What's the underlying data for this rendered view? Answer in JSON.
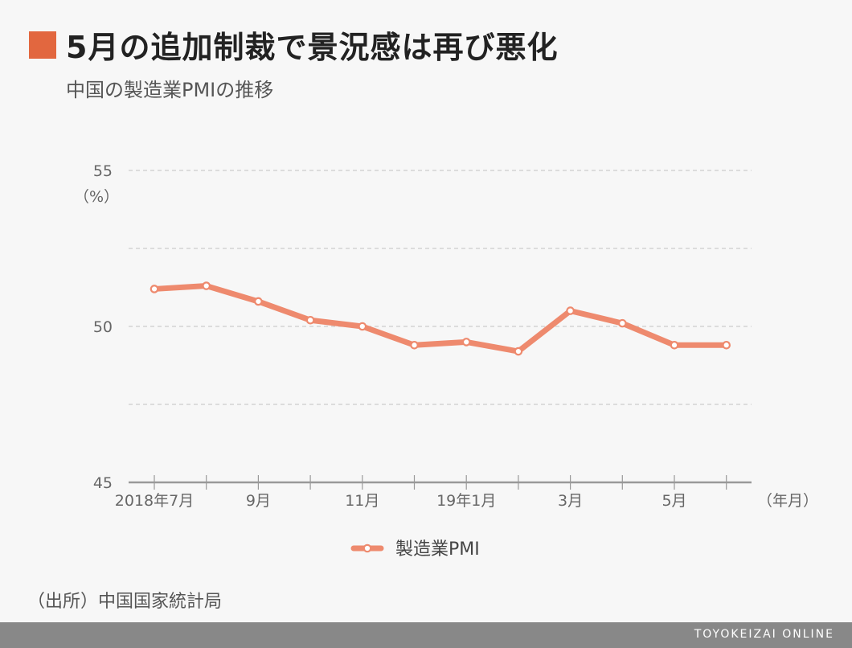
{
  "title": "5月の追加制裁で景況感は再び悪化",
  "subtitle": "中国の製造業PMIの推移",
  "source": "（出所）中国国家統計局",
  "footer": "TOYOKEIZAI ONLINE",
  "colors": {
    "accent": "#e2673f",
    "line": "#ee8a6e",
    "grid": "#cccccc",
    "axis": "#999999",
    "text": "#666666"
  },
  "chart_data": {
    "type": "line",
    "x": [
      "2018年7月",
      "8月",
      "9月",
      "10月",
      "11月",
      "12月",
      "19年1月",
      "2月",
      "3月",
      "4月",
      "5月",
      "6月"
    ],
    "x_tick_labels": [
      "2018年7月",
      "",
      "9月",
      "",
      "11月",
      "",
      "19年1月",
      "",
      "3月",
      "",
      "5月",
      ""
    ],
    "series": [
      {
        "name": "製造業PMI",
        "values": [
          51.2,
          51.3,
          50.8,
          50.2,
          50.0,
          49.4,
          49.5,
          49.2,
          50.5,
          50.1,
          49.4,
          49.4
        ]
      }
    ],
    "y_unit": "（%）",
    "x_unit": "（年月）",
    "ylim": [
      45,
      55
    ],
    "y_ticks": [
      45,
      50,
      55
    ],
    "y_gridlines": [
      47.5,
      50,
      52.5,
      55
    ],
    "grid": true,
    "legend": "bottom-center"
  }
}
